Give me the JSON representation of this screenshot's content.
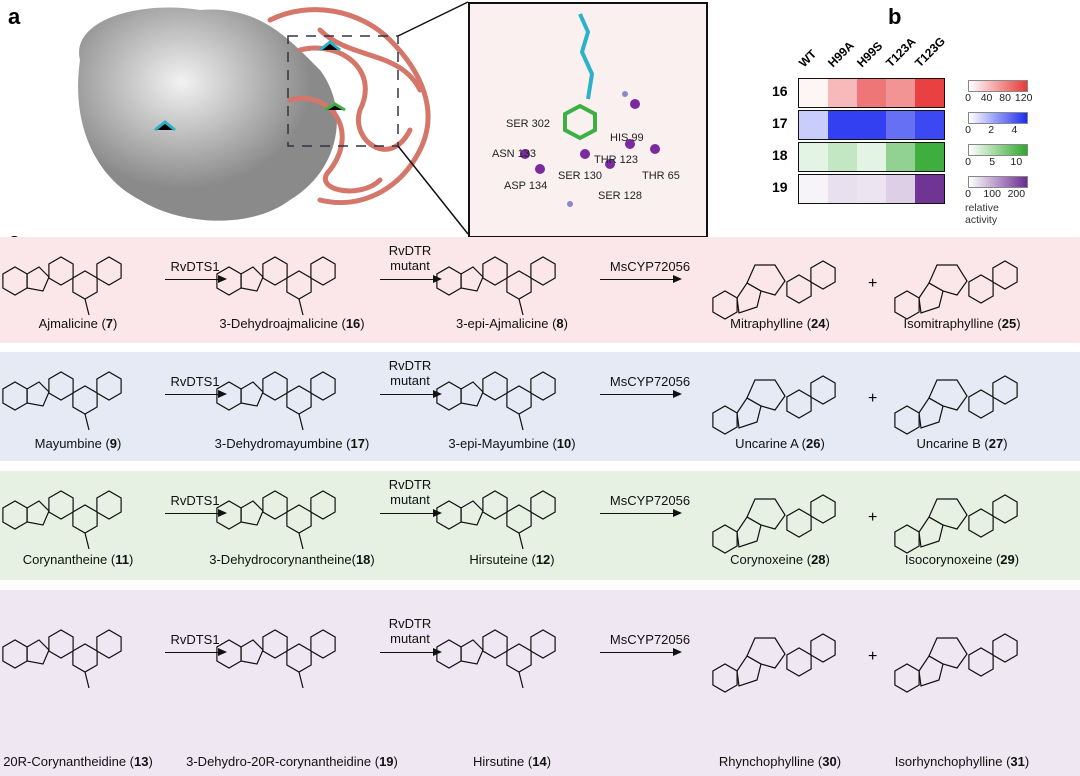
{
  "panels": {
    "a": "a",
    "b": "b",
    "c": "c"
  },
  "structure_view": {
    "residues": [
      "SER 302",
      "HIS 99",
      "ASN 133",
      "THR 123",
      "SER 130",
      "THR 65",
      "ASP 134",
      "SER 128"
    ]
  },
  "chart_data": {
    "type": "heatmap",
    "columns": [
      "WT",
      "H99A",
      "H99S",
      "T123A",
      "T123G"
    ],
    "rows": [
      "16",
      "17",
      "18",
      "19"
    ],
    "values": [
      [
        0,
        40,
        85,
        65,
        120
      ],
      [
        1,
        4.5,
        4.5,
        3.3,
        4.3
      ],
      [
        1,
        3,
        1,
        6,
        11
      ],
      [
        0,
        25,
        20,
        45,
        230
      ]
    ],
    "colorbars": [
      {
        "row": "16",
        "color": "#e8393a",
        "range": [
          0,
          125
        ],
        "ticks": [
          "0",
          "40",
          "80",
          "120"
        ]
      },
      {
        "row": "17",
        "color": "#1e2cf0",
        "range": [
          0,
          5
        ],
        "ticks": [
          "0",
          "2",
          "4"
        ]
      },
      {
        "row": "18",
        "color": "#2ea82e",
        "range": [
          0,
          12
        ],
        "ticks": [
          "0",
          "5",
          "10"
        ]
      },
      {
        "row": "19",
        "color": "#6a2c91",
        "range": [
          0,
          240
        ],
        "ticks": [
          "0",
          "100",
          "200"
        ]
      }
    ],
    "colorbar_label": "relative activity"
  },
  "scheme": {
    "enzymes": {
      "dts": "RvDTS1",
      "dtr1": "RvDTR",
      "dtr2": "mutant",
      "cyp": "MsCYP72056"
    },
    "plus": "+",
    "rows": [
      {
        "band": "#fbe6ea",
        "compounds": [
          {
            "name": "Ajmalicine (",
            "num": "7",
            "end": ")"
          },
          {
            "name": "3-Dehydroajmalicine (",
            "num": "16",
            "end": ")"
          },
          {
            "name": "3-epi-Ajmalicine (",
            "num": "8",
            "end": ")"
          },
          {
            "name": "Mitraphylline (",
            "num": "24",
            "end": ")"
          },
          {
            "name": "Isomitraphylline (",
            "num": "25",
            "end": ")"
          }
        ]
      },
      {
        "band": "#e6eaf4",
        "compounds": [
          {
            "name": "Mayumbine (",
            "num": "9",
            "end": ")"
          },
          {
            "name": "3-Dehydromayumbine (",
            "num": "17",
            "end": ")"
          },
          {
            "name": "3-epi-Mayumbine (",
            "num": "10",
            "end": ")"
          },
          {
            "name": "Uncarine A (",
            "num": "26",
            "end": ")"
          },
          {
            "name": "Uncarine B (",
            "num": "27",
            "end": ")"
          }
        ]
      },
      {
        "band": "#e6f1e4",
        "compounds": [
          {
            "name": "Corynantheine (",
            "num": "11",
            "end": ")"
          },
          {
            "name": "3-Dehydrocorynantheine(",
            "num": "18",
            "end": ")"
          },
          {
            "name": "Hirsuteine (",
            "num": "12",
            "end": ")"
          },
          {
            "name": "Corynoxeine (",
            "num": "28",
            "end": ")"
          },
          {
            "name": "Isocorynoxeine (",
            "num": "29",
            "end": ")"
          }
        ]
      },
      {
        "band": "#efe7f1",
        "compounds": [
          {
            "name": "20R-Corynantheidine (",
            "num": "13",
            "end": ")"
          },
          {
            "name": "3-Dehydro-20R-corynantheidine (",
            "num": "19",
            "end": ")"
          },
          {
            "name": "Hirsutine (",
            "num": "14",
            "end": ")"
          },
          {
            "name": "Rhynchophylline (",
            "num": "30",
            "end": ")"
          },
          {
            "name": "Isorhynchophylline (",
            "num": "31",
            "end": ")"
          }
        ]
      }
    ]
  }
}
